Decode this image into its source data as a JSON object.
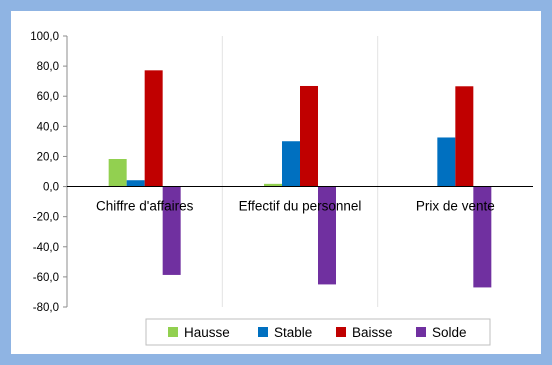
{
  "chart_data": {
    "type": "bar",
    "categories": [
      "Chiffre d'affaires",
      "Effectif du personnel",
      "Prix de vente"
    ],
    "series": [
      {
        "name": "Hausse",
        "color": "#92d050",
        "values": [
          18.3,
          1.8,
          0.0
        ]
      },
      {
        "name": "Stable",
        "color": "#0070c0",
        "values": [
          4.2,
          30.1,
          32.6
        ]
      },
      {
        "name": "Baisse",
        "color": "#c00000",
        "values": [
          77.2,
          66.8,
          66.6
        ]
      },
      {
        "name": "Solde",
        "color": "#7030a0",
        "values": [
          -58.7,
          -65.0,
          -67.0
        ]
      }
    ],
    "ylim": [
      -80,
      100
    ],
    "yticks": [
      "100,0",
      "80,0",
      "60,0",
      "40,0",
      "20,0",
      "0,0",
      "-20,0",
      "-40,0",
      "-60,0",
      "-80,0"
    ],
    "grid": "vertical category separators",
    "legend_position": "bottom"
  }
}
